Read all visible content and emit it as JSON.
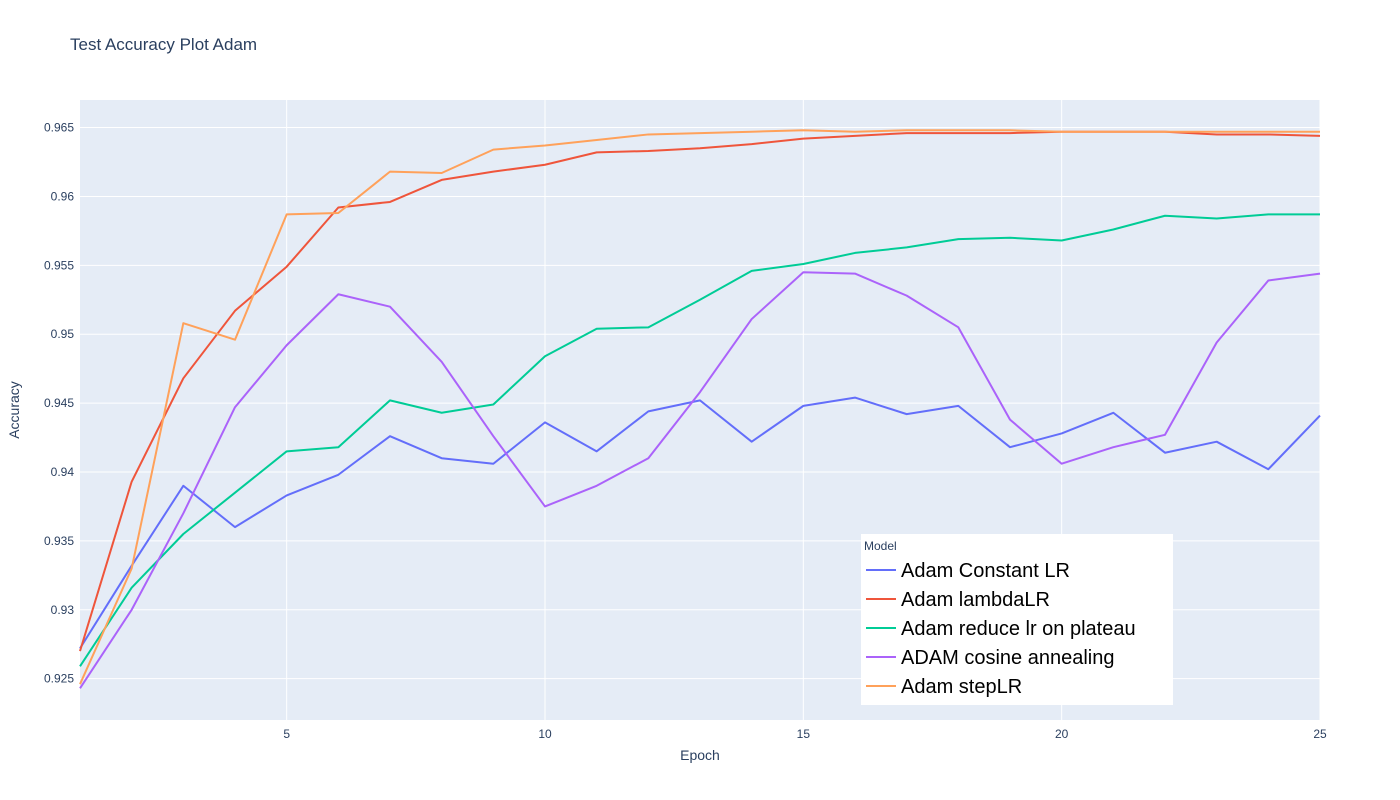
{
  "chart_data": {
    "type": "line",
    "title": "Test Accuracy Plot Adam",
    "xlabel": "Epoch",
    "ylabel": "Accuracy",
    "xlim": [
      1,
      25
    ],
    "ylim": [
      0.922,
      0.967
    ],
    "x_ticks": [
      5,
      10,
      15,
      20,
      25
    ],
    "y_ticks": [
      0.925,
      0.93,
      0.935,
      0.94,
      0.945,
      0.95,
      0.955,
      0.96,
      0.965
    ],
    "y_tick_labels": [
      "0.925",
      "0.93",
      "0.935",
      "0.94",
      "0.945",
      "0.95",
      "0.955",
      "0.96",
      "0.965"
    ],
    "grid": true,
    "legend": {
      "title": "Model",
      "placement": "bottom-right"
    },
    "x": [
      1,
      2,
      3,
      4,
      5,
      6,
      7,
      8,
      9,
      10,
      11,
      12,
      13,
      14,
      15,
      16,
      17,
      18,
      19,
      20,
      21,
      22,
      23,
      24,
      25
    ],
    "series": [
      {
        "name": "Adam Constant LR",
        "color": "#636efa",
        "values": [
          0.9272,
          0.9332,
          0.939,
          0.936,
          0.9383,
          0.9398,
          0.9426,
          0.941,
          0.9406,
          0.9436,
          0.9415,
          0.9444,
          0.9452,
          0.9422,
          0.9448,
          0.9454,
          0.9442,
          0.9448,
          0.9418,
          0.9428,
          0.9443,
          0.9414,
          0.9422,
          0.9402,
          0.9441
        ]
      },
      {
        "name": "Adam lambdaLR",
        "color": "#ef553b",
        "values": [
          0.927,
          0.9393,
          0.9468,
          0.9517,
          0.9549,
          0.9592,
          0.9596,
          0.9612,
          0.9618,
          0.9623,
          0.9632,
          0.9633,
          0.9635,
          0.9638,
          0.9642,
          0.9644,
          0.9646,
          0.9646,
          0.9646,
          0.9647,
          0.9647,
          0.9647,
          0.9645,
          0.9645,
          0.9644
        ]
      },
      {
        "name": "Adam reduce lr on plateau",
        "color": "#00cc96",
        "values": [
          0.9259,
          0.9316,
          0.9355,
          0.9385,
          0.9415,
          0.9418,
          0.9452,
          0.9443,
          0.9449,
          0.9484,
          0.9504,
          0.9505,
          0.9525,
          0.9546,
          0.9551,
          0.9559,
          0.9563,
          0.9569,
          0.957,
          0.9568,
          0.9576,
          0.9586,
          0.9584,
          0.9587,
          0.9587
        ]
      },
      {
        "name": "ADAM cosine annealing",
        "color": "#ab63fa",
        "values": [
          0.9243,
          0.93,
          0.937,
          0.9447,
          0.9492,
          0.9529,
          0.952,
          0.948,
          0.9426,
          0.9375,
          0.939,
          0.941,
          0.9458,
          0.9511,
          0.9545,
          0.9544,
          0.9528,
          0.9505,
          0.9438,
          0.9406,
          0.9418,
          0.9427,
          0.9494,
          0.9539,
          0.9544
        ]
      },
      {
        "name": "Adam stepLR",
        "color": "#ffa15a",
        "values": [
          0.9246,
          0.933,
          0.9508,
          0.9496,
          0.9587,
          0.9588,
          0.9618,
          0.9617,
          0.9634,
          0.9637,
          0.9641,
          0.9645,
          0.9646,
          0.9647,
          0.9648,
          0.9647,
          0.9648,
          0.9648,
          0.9648,
          0.9647,
          0.9647,
          0.9647,
          0.9647,
          0.9647,
          0.9647
        ]
      }
    ]
  }
}
